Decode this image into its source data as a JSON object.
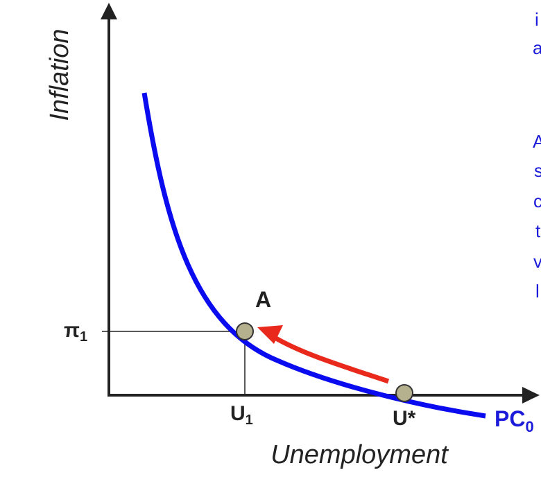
{
  "diagram": {
    "axes": {
      "y_label": "Inflation",
      "x_label": "Unemployment"
    },
    "ticks": {
      "pi_symbol": "π",
      "pi_sub": "1",
      "u1_main": "U",
      "u1_sub": "1",
      "u_star": "U*"
    },
    "point_label": "A",
    "curve_label": {
      "main": "PC",
      "sub": "0"
    },
    "side_text_fragments": [
      "i",
      "a",
      "A",
      "s",
      "c",
      "t",
      "v",
      "l"
    ],
    "colors": {
      "curve": "#0b0bf0",
      "arrow": "#e8291c",
      "point": "#b5b18f",
      "side_text": "#1b1bd9",
      "axis": "#222222"
    }
  }
}
